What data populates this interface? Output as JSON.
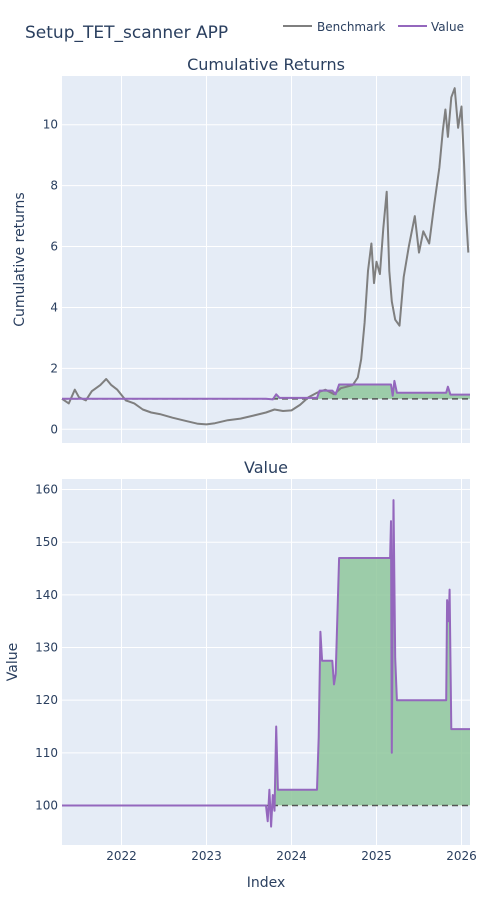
{
  "app_title": "Setup_TET_scanner APP",
  "legend": [
    {
      "name": "Benchmark",
      "color": "#7f7f7f"
    },
    {
      "name": "Value",
      "color": "#9467bd"
    }
  ],
  "colors": {
    "plot_bg": "#e5ecf6",
    "grid": "#ffffff",
    "fill": "#8fc79b",
    "baseline": "#555555"
  },
  "chart_data": [
    {
      "type": "line",
      "title": "Cumulative Returns",
      "xlabel": "",
      "ylabel": "Cumulative returns",
      "xlim": [
        2021.3,
        2026.1
      ],
      "ylim": [
        -0.45,
        11.6
      ],
      "y_ticks": [
        0,
        2,
        4,
        6,
        8,
        10
      ],
      "x_ticks": [
        2022,
        2023,
        2024,
        2025,
        2026
      ],
      "grid": true,
      "baseline": 1,
      "series": [
        {
          "name": "Benchmark",
          "color": "#7f7f7f",
          "points": [
            [
              2021.3,
              1.0
            ],
            [
              2021.38,
              0.85
            ],
            [
              2021.45,
              1.3
            ],
            [
              2021.5,
              1.05
            ],
            [
              2021.58,
              0.95
            ],
            [
              2021.65,
              1.25
            ],
            [
              2021.75,
              1.45
            ],
            [
              2021.82,
              1.65
            ],
            [
              2021.88,
              1.45
            ],
            [
              2021.95,
              1.3
            ],
            [
              2022.05,
              0.95
            ],
            [
              2022.15,
              0.85
            ],
            [
              2022.25,
              0.65
            ],
            [
              2022.35,
              0.55
            ],
            [
              2022.45,
              0.5
            ],
            [
              2022.6,
              0.38
            ],
            [
              2022.75,
              0.28
            ],
            [
              2022.9,
              0.18
            ],
            [
              2023.0,
              0.16
            ],
            [
              2023.1,
              0.2
            ],
            [
              2023.25,
              0.3
            ],
            [
              2023.4,
              0.35
            ],
            [
              2023.55,
              0.45
            ],
            [
              2023.7,
              0.55
            ],
            [
              2023.8,
              0.65
            ],
            [
              2023.9,
              0.6
            ],
            [
              2024.0,
              0.62
            ],
            [
              2024.1,
              0.8
            ],
            [
              2024.2,
              1.05
            ],
            [
              2024.3,
              1.2
            ],
            [
              2024.4,
              1.3
            ],
            [
              2024.5,
              1.15
            ],
            [
              2024.58,
              1.35
            ],
            [
              2024.65,
              1.4
            ],
            [
              2024.72,
              1.45
            ],
            [
              2024.78,
              1.7
            ],
            [
              2024.82,
              2.3
            ],
            [
              2024.86,
              3.5
            ],
            [
              2024.9,
              5.2
            ],
            [
              2024.94,
              6.1
            ],
            [
              2024.97,
              4.8
            ],
            [
              2025.0,
              5.5
            ],
            [
              2025.04,
              5.1
            ],
            [
              2025.08,
              6.6
            ],
            [
              2025.12,
              7.8
            ],
            [
              2025.15,
              5.2
            ],
            [
              2025.18,
              4.2
            ],
            [
              2025.22,
              3.6
            ],
            [
              2025.27,
              3.4
            ],
            [
              2025.32,
              5.0
            ],
            [
              2025.38,
              6.0
            ],
            [
              2025.45,
              7.0
            ],
            [
              2025.5,
              5.8
            ],
            [
              2025.55,
              6.5
            ],
            [
              2025.62,
              6.1
            ],
            [
              2025.68,
              7.4
            ],
            [
              2025.74,
              8.6
            ],
            [
              2025.78,
              9.8
            ],
            [
              2025.81,
              10.5
            ],
            [
              2025.84,
              9.6
            ],
            [
              2025.88,
              10.9
            ],
            [
              2025.92,
              11.2
            ],
            [
              2025.96,
              9.9
            ],
            [
              2026.0,
              10.6
            ],
            [
              2026.03,
              8.7
            ],
            [
              2026.05,
              7.2
            ],
            [
              2026.08,
              5.8
            ]
          ]
        },
        {
          "name": "Value",
          "color": "#9467bd",
          "points": [
            [
              2021.3,
              1.0
            ],
            [
              2023.7,
              1.0
            ],
            [
              2023.78,
              0.98
            ],
            [
              2023.82,
              1.15
            ],
            [
              2023.86,
              1.03
            ],
            [
              2024.0,
              1.03
            ],
            [
              2024.3,
              1.03
            ],
            [
              2024.33,
              1.27
            ],
            [
              2024.48,
              1.27
            ],
            [
              2024.52,
              1.15
            ],
            [
              2024.56,
              1.47
            ],
            [
              2025.17,
              1.47
            ],
            [
              2025.19,
              1.1
            ],
            [
              2025.21,
              1.59
            ],
            [
              2025.24,
              1.2
            ],
            [
              2025.82,
              1.2
            ],
            [
              2025.84,
              1.4
            ],
            [
              2025.87,
              1.14
            ],
            [
              2026.1,
              1.14
            ]
          ]
        }
      ]
    },
    {
      "type": "area",
      "title": "Value",
      "xlabel": "Index",
      "ylabel": "Value",
      "xlim": [
        2021.3,
        2026.1
      ],
      "ylim": [
        92.5,
        162
      ],
      "y_ticks": [
        100,
        110,
        120,
        130,
        140,
        150,
        160
      ],
      "x_ticks": [
        2022,
        2023,
        2024,
        2025,
        2026
      ],
      "x_tick_labels": [
        "2022",
        "2023",
        "2024",
        "2025",
        "2026"
      ],
      "grid": true,
      "baseline": 100,
      "series": [
        {
          "name": "Value",
          "color": "#9467bd",
          "points": [
            [
              2021.3,
              100
            ],
            [
              2023.7,
              100
            ],
            [
              2023.72,
              97
            ],
            [
              2023.74,
              103
            ],
            [
              2023.76,
              96
            ],
            [
              2023.78,
              102
            ],
            [
              2023.8,
              99
            ],
            [
              2023.82,
              115
            ],
            [
              2023.84,
              103
            ],
            [
              2024.3,
              103
            ],
            [
              2024.32,
              113
            ],
            [
              2024.34,
              133
            ],
            [
              2024.36,
              127.5
            ],
            [
              2024.48,
              127.5
            ],
            [
              2024.5,
              123
            ],
            [
              2024.52,
              125
            ],
            [
              2024.56,
              147
            ],
            [
              2025.16,
              147
            ],
            [
              2025.17,
              154
            ],
            [
              2025.18,
              110
            ],
            [
              2025.2,
              158
            ],
            [
              2025.22,
              128
            ],
            [
              2025.24,
              120
            ],
            [
              2025.82,
              120
            ],
            [
              2025.83,
              139
            ],
            [
              2025.85,
              135
            ],
            [
              2025.86,
              141
            ],
            [
              2025.88,
              114.5
            ],
            [
              2026.1,
              114.5
            ]
          ]
        }
      ]
    }
  ]
}
